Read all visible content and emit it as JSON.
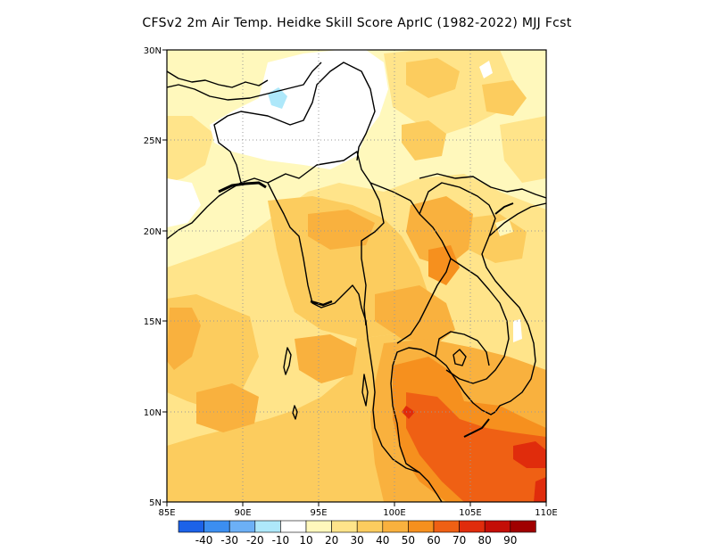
{
  "title": "CFSv2  2m Air Temp. Heidke Skill Score AprIC (1982-2022) MJJ Fcst",
  "map": {
    "lon_range": [
      85,
      110
    ],
    "lat_range": [
      5,
      30
    ],
    "lon_ticks": [
      "85E",
      "90E",
      "95E",
      "100E",
      "105E",
      "110E"
    ],
    "lat_ticks": [
      "5N",
      "10N",
      "15N",
      "20N",
      "25N",
      "30N"
    ],
    "grid": "dotted"
  },
  "colorbar": {
    "colors": [
      "#1c62e8",
      "#3c8ef0",
      "#6cb0f6",
      "#aee8fa",
      "#ffffff",
      "#fff8bc",
      "#ffe48a",
      "#fccc5e",
      "#f9b13e",
      "#f6901e",
      "#ef6014",
      "#e02c0c",
      "#c40e06",
      "#a00000"
    ],
    "labels": [
      "-40",
      "-30",
      "-20",
      "-10",
      "10",
      "20",
      "30",
      "40",
      "50",
      "60",
      "70",
      "80",
      "90"
    ]
  }
}
